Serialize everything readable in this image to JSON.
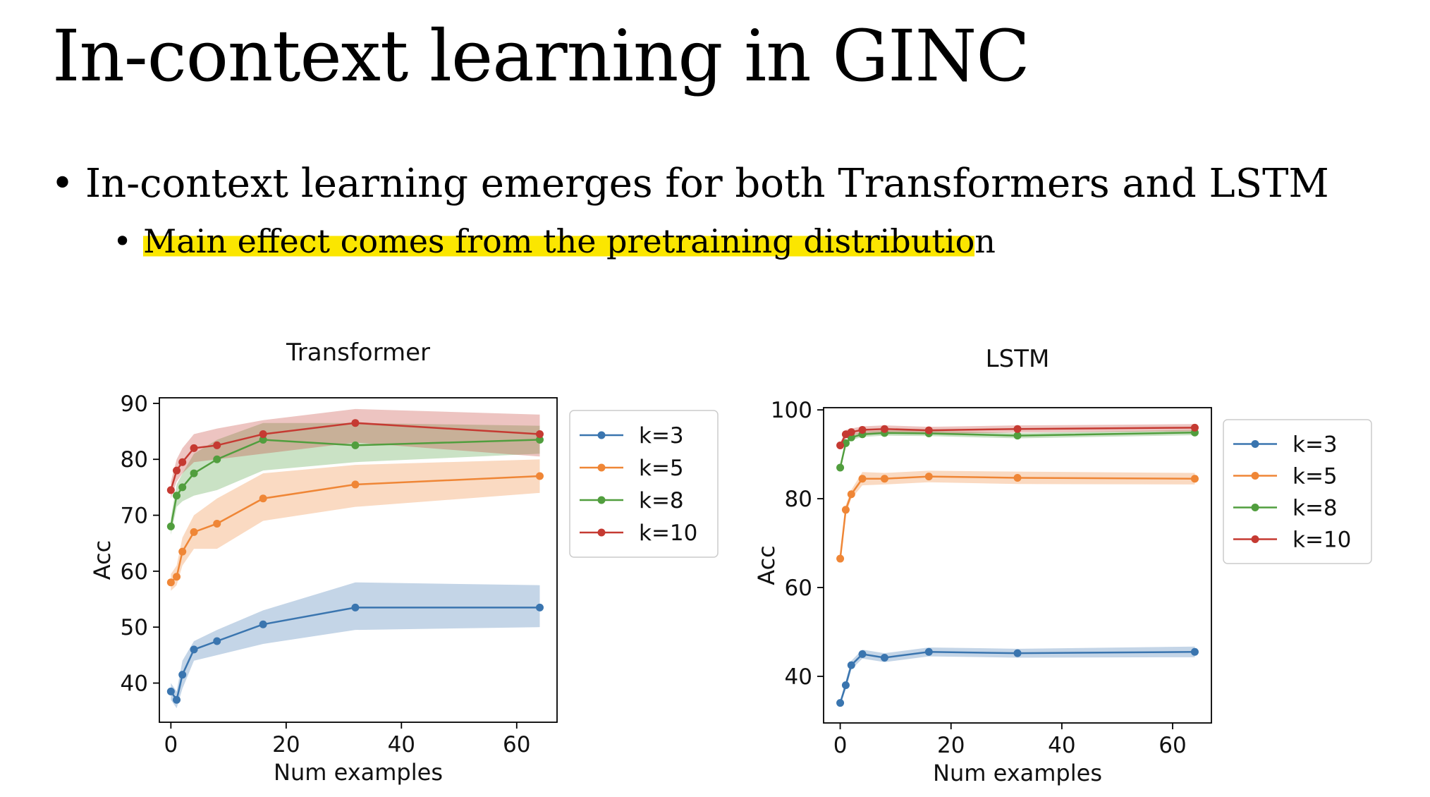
{
  "slide": {
    "title": "In-context learning in GINC",
    "bullet_1": "In-context learning emerges for both Transformers and LSTM",
    "bullet_2_highlighted": "Main effect comes from the pretraining distributio",
    "bullet_2_rest": "n",
    "bullet_symbol": "•",
    "highlight_color": "#fbe600"
  },
  "chart_data": [
    {
      "type": "line",
      "title": "Transformer",
      "xlabel": "Num examples",
      "ylabel": "Acc",
      "xlim": [
        -2,
        67
      ],
      "ylim": [
        33,
        91
      ],
      "xticks": [
        0,
        20,
        40,
        60
      ],
      "yticks": [
        40,
        50,
        60,
        70,
        80,
        90
      ],
      "legend_position": "outside-right-top",
      "x": [
        0,
        1,
        2,
        4,
        8,
        16,
        32,
        64
      ],
      "series": [
        {
          "name": "k=3",
          "color": "#3a75af",
          "values": [
            38.5,
            37,
            41.5,
            46,
            47.5,
            50.5,
            53.5,
            53.5
          ],
          "lower": [
            37,
            35.5,
            39,
            44,
            45,
            47,
            49.5,
            50
          ],
          "upper": [
            40,
            38.5,
            44,
            47.5,
            49.5,
            53,
            58,
            57.5
          ]
        },
        {
          "name": "k=5",
          "color": "#ef8636",
          "values": [
            58,
            59,
            63.5,
            67,
            68.5,
            73,
            75.5,
            77
          ],
          "lower": [
            56.5,
            57.5,
            61,
            64,
            64,
            69,
            71.5,
            74
          ],
          "upper": [
            59.5,
            61,
            66,
            70,
            73,
            77.5,
            79,
            80
          ]
        },
        {
          "name": "k=8",
          "color": "#519e3e",
          "values": [
            68,
            73.5,
            75,
            77.5,
            80,
            83.5,
            82.5,
            83.5
          ],
          "lower": [
            66.5,
            71.5,
            72.5,
            73.5,
            74.5,
            78,
            79.5,
            81
          ],
          "upper": [
            69.5,
            75.5,
            77.5,
            81,
            83.5,
            86.5,
            86.5,
            86
          ]
        },
        {
          "name": "k=10",
          "color": "#c53a32",
          "values": [
            74.5,
            78,
            79.5,
            82,
            82.5,
            84.5,
            86.5,
            84.5
          ],
          "lower": [
            73,
            76,
            77.5,
            79.5,
            80,
            81,
            83,
            80.5
          ],
          "upper": [
            76,
            80,
            82,
            84.5,
            85.5,
            87,
            89,
            88
          ]
        }
      ]
    },
    {
      "type": "line",
      "title": "LSTM",
      "xlabel": "Num examples",
      "ylabel": "Acc",
      "xlim": [
        -3,
        67
      ],
      "ylim": [
        29.5,
        100.5
      ],
      "xticks": [
        0,
        20,
        40,
        60
      ],
      "yticks": [
        40,
        60,
        80,
        100
      ],
      "legend_position": "outside-right-top",
      "x": [
        0,
        1,
        2,
        4,
        8,
        16,
        32,
        64
      ],
      "series": [
        {
          "name": "k=3",
          "color": "#3a75af",
          "values": [
            34,
            38,
            42.5,
            45,
            44.2,
            45.5,
            45.2,
            45.5
          ],
          "lower": [
            33.5,
            37,
            41.5,
            44,
            43.2,
            44.5,
            44.2,
            44.3
          ],
          "upper": [
            34.5,
            39,
            43.5,
            46,
            45.2,
            46.5,
            46.2,
            46.7
          ]
        },
        {
          "name": "k=5",
          "color": "#ef8636",
          "values": [
            66.5,
            77.5,
            81,
            84.5,
            84.5,
            85,
            84.7,
            84.5
          ],
          "lower": [
            66,
            76.5,
            80,
            83,
            83.2,
            83.7,
            83.3,
            83.2
          ],
          "upper": [
            67,
            78.5,
            82,
            86,
            85.8,
            86.3,
            86.1,
            85.8
          ]
        },
        {
          "name": "k=8",
          "color": "#519e3e",
          "values": [
            87,
            92.5,
            93.8,
            94.5,
            94.8,
            94.7,
            94.2,
            94.9
          ],
          "lower": [
            86.5,
            92,
            93.2,
            93.9,
            94.2,
            94.1,
            93.6,
            94.3
          ],
          "upper": [
            87.5,
            93,
            94.4,
            95.1,
            95.4,
            95.3,
            94.8,
            95.5
          ]
        },
        {
          "name": "k=10",
          "color": "#c53a32",
          "values": [
            92,
            94.5,
            95,
            95.5,
            95.7,
            95.4,
            95.7,
            96
          ],
          "lower": [
            91.5,
            93.5,
            94.2,
            94.7,
            94.9,
            94.6,
            94.9,
            95.2
          ],
          "upper": [
            92.5,
            95.5,
            95.8,
            96.3,
            96.5,
            96.2,
            96.5,
            96.8
          ]
        }
      ]
    }
  ]
}
